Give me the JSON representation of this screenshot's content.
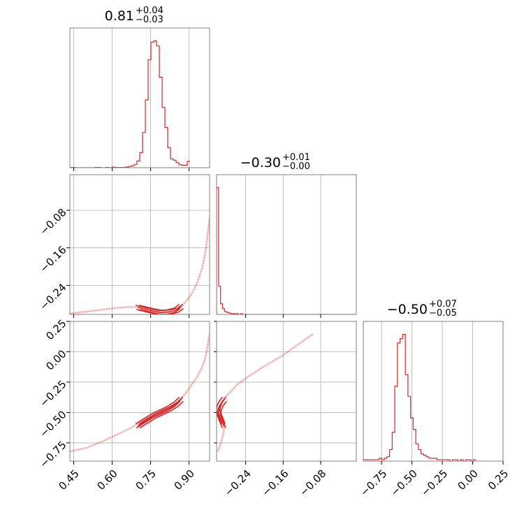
{
  "chart_data": {
    "type": "corner",
    "color": "#d62728",
    "grid": true,
    "parameters": [
      {
        "title_value": "0.81",
        "title_plus": "+0.04",
        "title_minus": "−0.03",
        "range": [
          0.435,
          0.98
        ],
        "ticks": [
          0.45,
          0.6,
          0.75,
          0.9
        ],
        "tick_labels": [
          "0.45",
          "0.60",
          "0.75",
          "0.90"
        ],
        "histogram": {
          "bin_start": 0.435,
          "bin_width": 0.0109,
          "counts": [
            1,
            1,
            0,
            0,
            0,
            0,
            0,
            0,
            0,
            1,
            1,
            0,
            0,
            1,
            0,
            2,
            1,
            1,
            1,
            1,
            3,
            5,
            8,
            13,
            27,
            60,
            140,
            270,
            430,
            500,
            505,
            485,
            360,
            240,
            160,
            80,
            35,
            30,
            20,
            12,
            10,
            10,
            25
          ]
        }
      },
      {
        "title_value": "−0.30",
        "title_plus": "+0.01",
        "title_minus": "−0.00",
        "range": [
          -0.302,
          -0.004
        ],
        "ticks": [
          -0.24,
          -0.16,
          -0.08
        ],
        "tick_labels": [
          "−0.24",
          "−0.16",
          "−0.08"
        ],
        "histogram": {
          "bin_start": -0.302,
          "bin_width": 0.00425,
          "counts": [
            180,
            40,
            15,
            8,
            4,
            3,
            2,
            1,
            1,
            1,
            1,
            0,
            1,
            0,
            0,
            0,
            0,
            0,
            0,
            0,
            0,
            0,
            0,
            0,
            0,
            0,
            0,
            0,
            0,
            0,
            0,
            0,
            0,
            0,
            0,
            0,
            0,
            0,
            0,
            0,
            0,
            0,
            0,
            0,
            0,
            0,
            0,
            0,
            0,
            0,
            0,
            0,
            0,
            0,
            0,
            0,
            0,
            0,
            0,
            0,
            0,
            0,
            0,
            0,
            0,
            0,
            0,
            0,
            0,
            0
          ]
        }
      },
      {
        "title_value": "−0.50",
        "title_plus": "+0.07",
        "title_minus": "−0.05",
        "range": [
          -0.9,
          0.25
        ],
        "ticks": [
          -0.75,
          -0.5,
          -0.25,
          0.0,
          0.25
        ],
        "tick_labels": [
          "−0.75",
          "−0.50",
          "−0.25",
          "0.00",
          "0.25"
        ],
        "histogram": {
          "bin_start": -0.9,
          "bin_width": 0.0216,
          "counts": [
            1,
            1,
            1,
            1,
            1,
            1,
            2,
            1,
            2,
            3,
            8,
            20,
            52,
            82,
            85,
            88,
            60,
            45,
            30,
            22,
            12,
            8,
            5,
            4,
            3,
            2,
            2,
            2,
            1,
            1,
            1,
            1,
            1,
            0,
            1,
            1,
            0,
            1,
            0,
            1,
            1,
            0,
            1
          ]
        }
      }
    ],
    "trace": {
      "x": [
        0.435,
        0.5,
        0.56,
        0.62,
        0.67,
        0.7,
        0.73,
        0.76,
        0.79,
        0.82,
        0.85,
        0.87,
        0.89,
        0.91,
        0.93,
        0.95,
        0.965,
        0.98
      ],
      "y": [
        -0.3,
        -0.296,
        -0.292,
        -0.288,
        -0.286,
        -0.287,
        -0.291,
        -0.295,
        -0.298,
        -0.297,
        -0.293,
        -0.285,
        -0.273,
        -0.258,
        -0.237,
        -0.205,
        -0.165,
        -0.095
      ],
      "z": [
        -0.82,
        -0.79,
        -0.74,
        -0.68,
        -0.63,
        -0.59,
        -0.55,
        -0.52,
        -0.49,
        -0.46,
        -0.42,
        -0.38,
        -0.33,
        -0.27,
        -0.21,
        -0.13,
        -0.04,
        0.15
      ]
    },
    "core": {
      "x": [
        0.7,
        0.73,
        0.76,
        0.79,
        0.82,
        0.85,
        0.87
      ],
      "y": [
        -0.287,
        -0.291,
        -0.295,
        -0.298,
        -0.297,
        -0.293,
        -0.285
      ],
      "z": [
        -0.61,
        -0.57,
        -0.53,
        -0.5,
        -0.47,
        -0.43,
        -0.39
      ]
    }
  }
}
